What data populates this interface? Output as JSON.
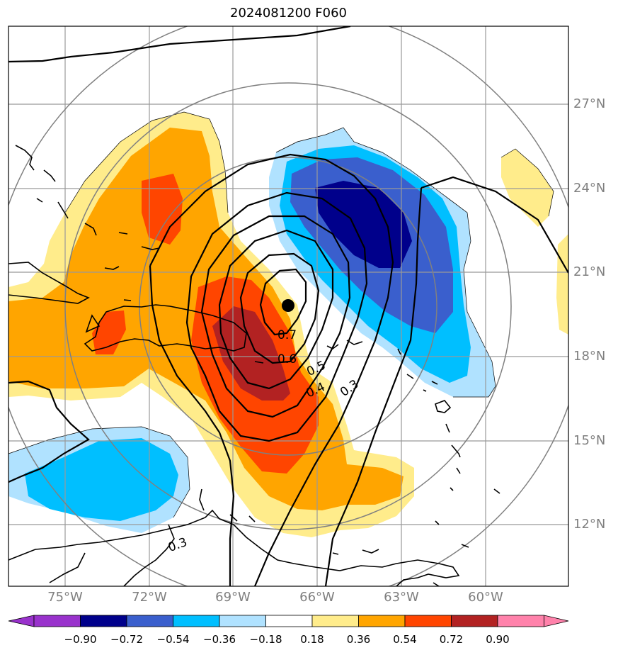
{
  "title": "2024081200 F060",
  "latitude_labels": [
    "27°N",
    "24°N",
    "21°N",
    "18°N",
    "15°N",
    "12°N"
  ],
  "longitude_labels": [
    "75°W",
    "72°W",
    "69°W",
    "66°W",
    "63°W",
    "60°W"
  ],
  "contour_labels": [
    "0.7",
    "0.6",
    "0.5",
    "0.4",
    "0.3",
    "0.3"
  ],
  "colorbar": {
    "tick_labels": [
      "−0.90",
      "−0.72",
      "−0.54",
      "−0.36",
      "−0.18",
      "0.18",
      "0.36",
      "0.54",
      "0.72",
      "0.90"
    ],
    "colors": [
      "#9932cc",
      "#00008b",
      "#3a5fcd",
      "#00bfff",
      "#b0e2ff",
      "#ffffff",
      "#ffec8b",
      "#ffa500",
      "#ff4500",
      "#b22222",
      "#ff82ab"
    ]
  },
  "colors": {
    "grid": "#999999",
    "range_rings": "#808080",
    "coastline": "#000000",
    "contour": "#000000",
    "center_marker": "#000000"
  },
  "center_marker": "storm-center-dot"
}
